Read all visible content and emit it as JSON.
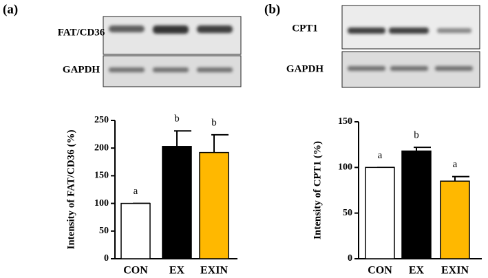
{
  "chart_data": [
    {
      "type": "bar",
      "panel_label": "(a)",
      "blot_labels": [
        "FAT/CD36",
        "GAPDH"
      ],
      "ylabel": "Intensity of FAT/CD36 (%)",
      "categories": [
        "CON",
        "EX",
        "EXIN"
      ],
      "values": [
        100,
        203,
        192
      ],
      "errors": [
        0,
        28,
        32
      ],
      "colors": [
        "#ffffff",
        "#000000",
        "#ffb800"
      ],
      "annotations": [
        "a",
        "b",
        "b"
      ],
      "ylim": [
        0,
        250
      ],
      "yticks": [
        0,
        50,
        100,
        150,
        200,
        250
      ]
    },
    {
      "type": "bar",
      "panel_label": "(b)",
      "blot_labels": [
        "CPT1",
        "GAPDH"
      ],
      "ylabel": "Intensity of CPT1 (%)",
      "categories": [
        "CON",
        "EX",
        "EXIN"
      ],
      "values": [
        100,
        118,
        85
      ],
      "errors": [
        0,
        4,
        5
      ],
      "colors": [
        "#ffffff",
        "#000000",
        "#ffb800"
      ],
      "annotations": [
        "a",
        "b",
        "a"
      ],
      "ylim": [
        0,
        150
      ],
      "yticks": [
        0,
        50,
        100,
        150
      ]
    }
  ]
}
